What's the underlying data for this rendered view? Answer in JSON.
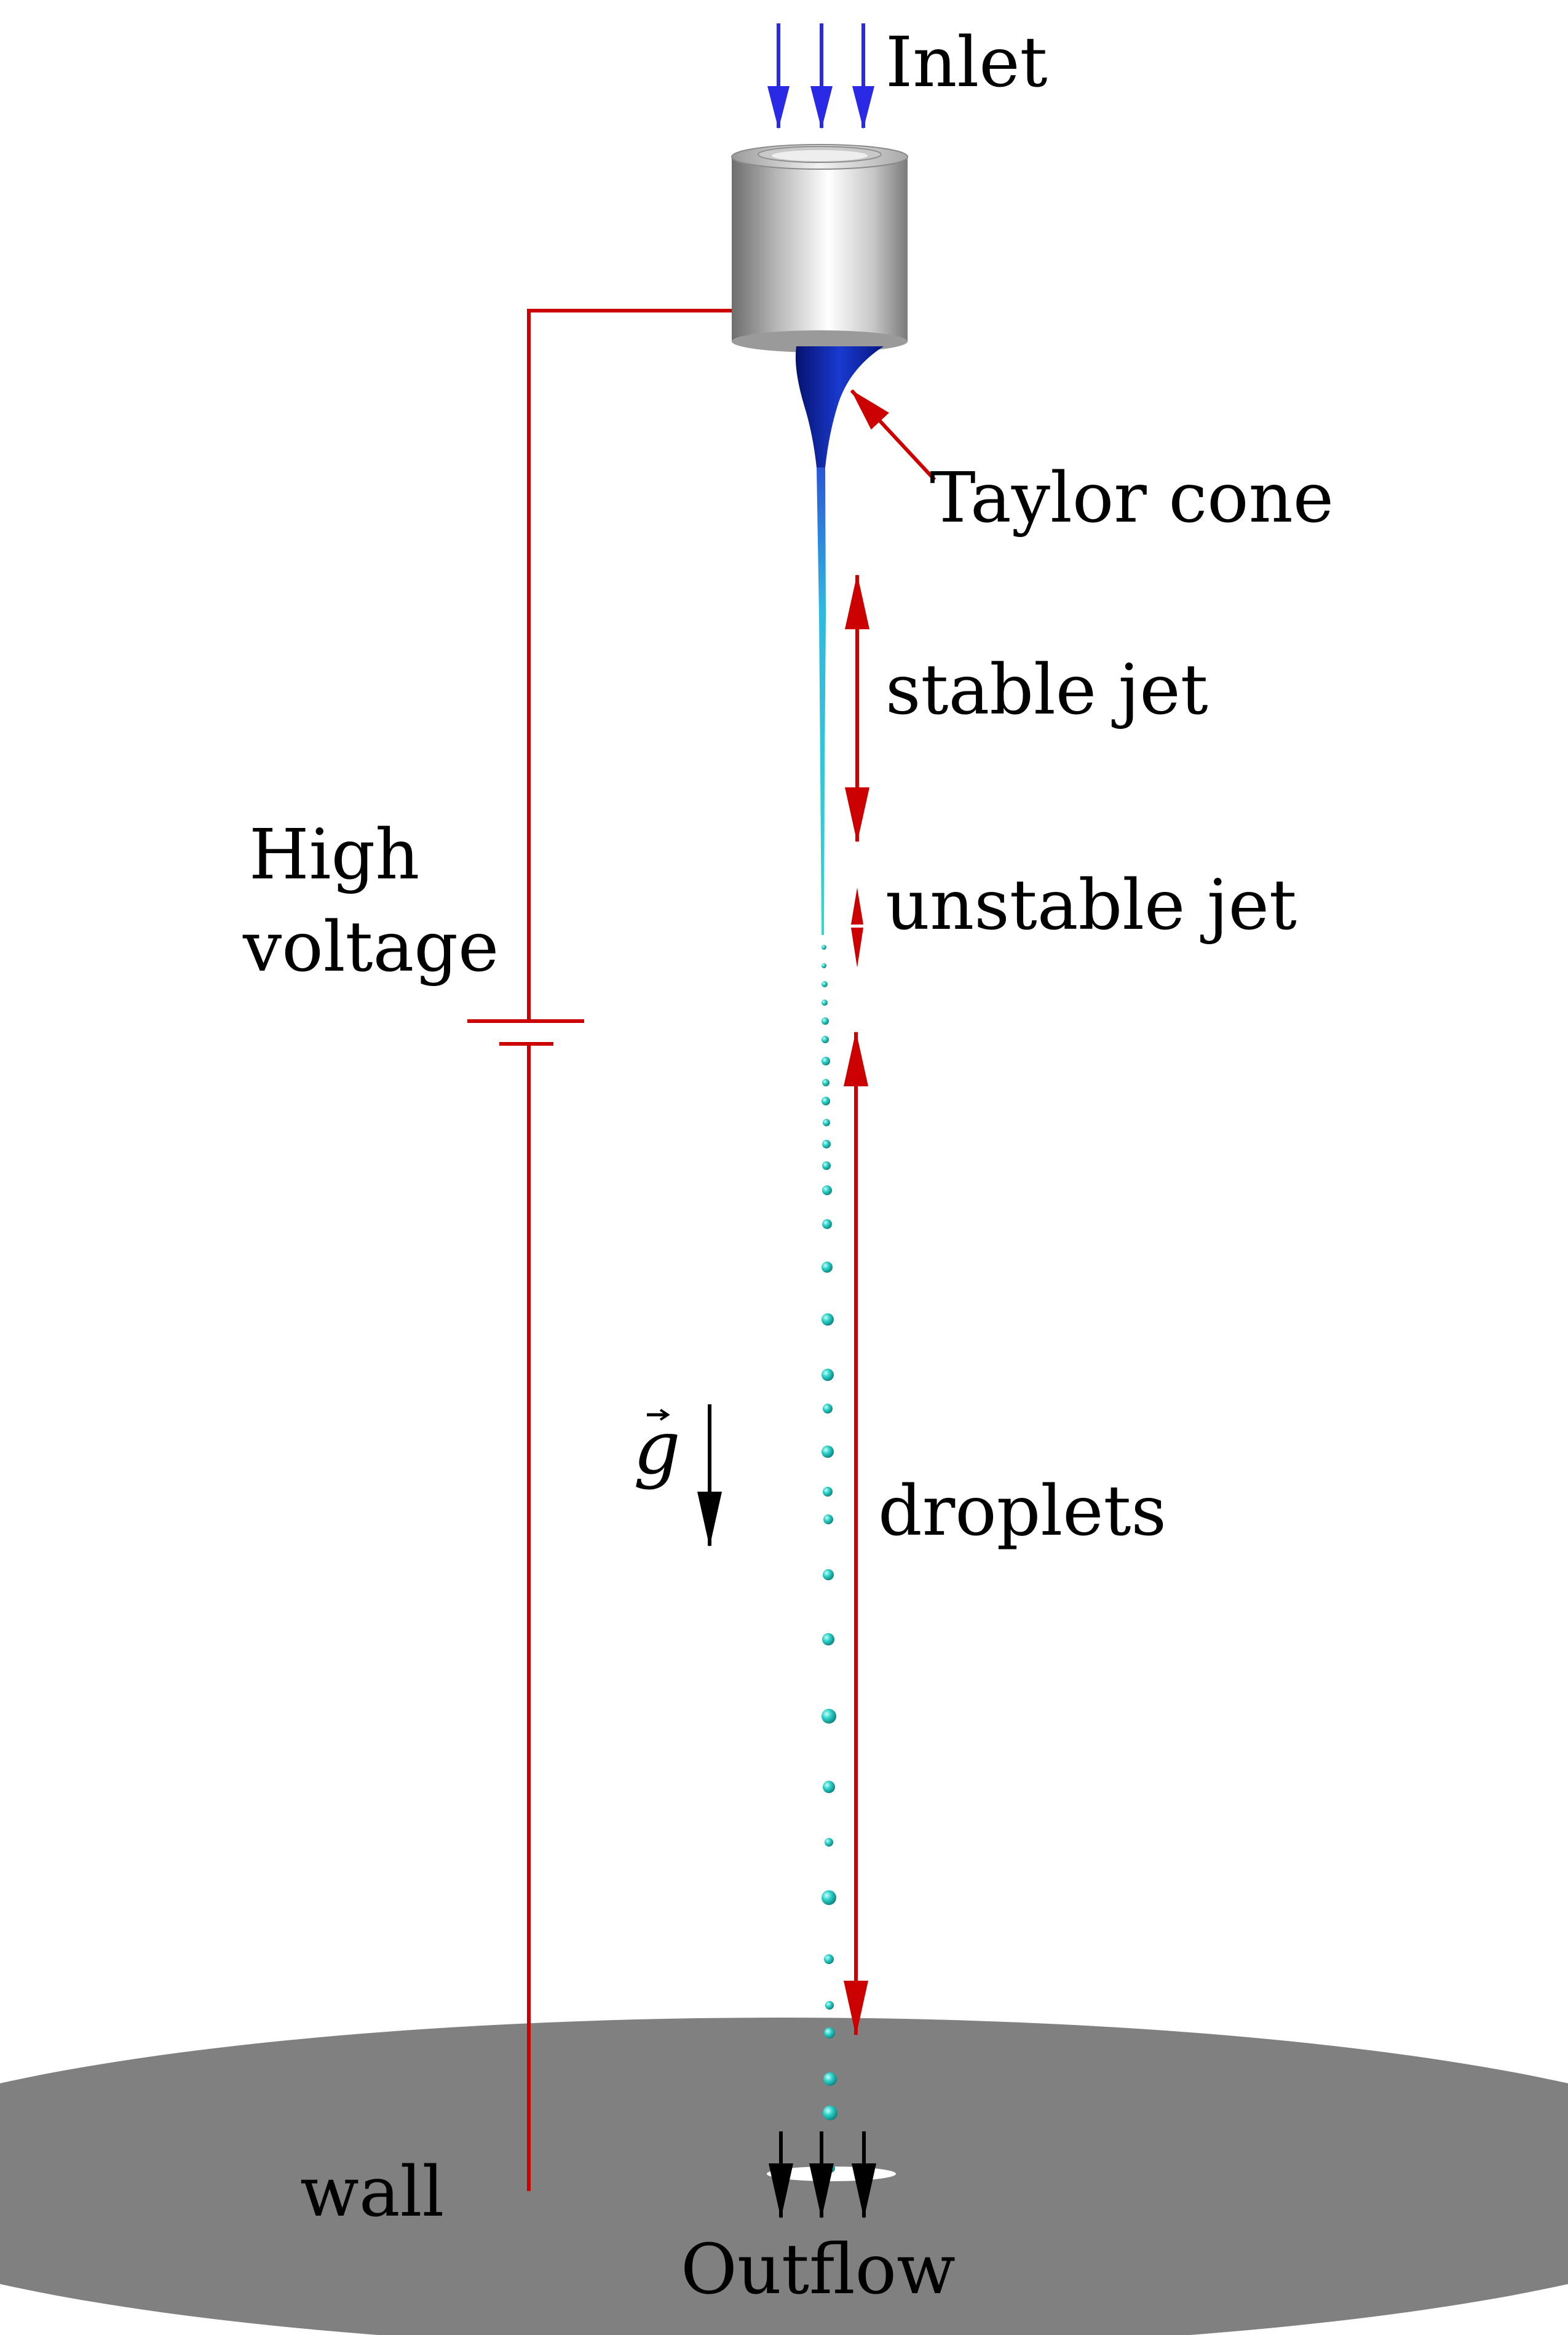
{
  "labels": {
    "inlet": "Inlet",
    "taylor_cone": "Taylor cone",
    "stable_jet": "stable jet",
    "unstable_jet": "unstable jet",
    "high_voltage_line1": "High",
    "high_voltage_line2": "voltage",
    "gravity_symbol": "g",
    "droplets": "droplets",
    "wall": "wall",
    "outflow": "Outflow"
  },
  "colors": {
    "inlet_arrows": "#2a2ae6",
    "circuit": "#cc0000",
    "annotation_arrows": "#cc0000",
    "taylor_cone": "#0a1ea0",
    "jet": "#2fc7d4",
    "droplets": "#2ad0c8",
    "wall": "#808080",
    "gravity_arrow": "#000000",
    "outflow_arrows": "#000000",
    "text": "#000000"
  },
  "icons": {
    "nozzle": "metallic-cylinder-nozzle",
    "battery": "battery-symbol",
    "gravity": "gravity-vector-arrow"
  }
}
